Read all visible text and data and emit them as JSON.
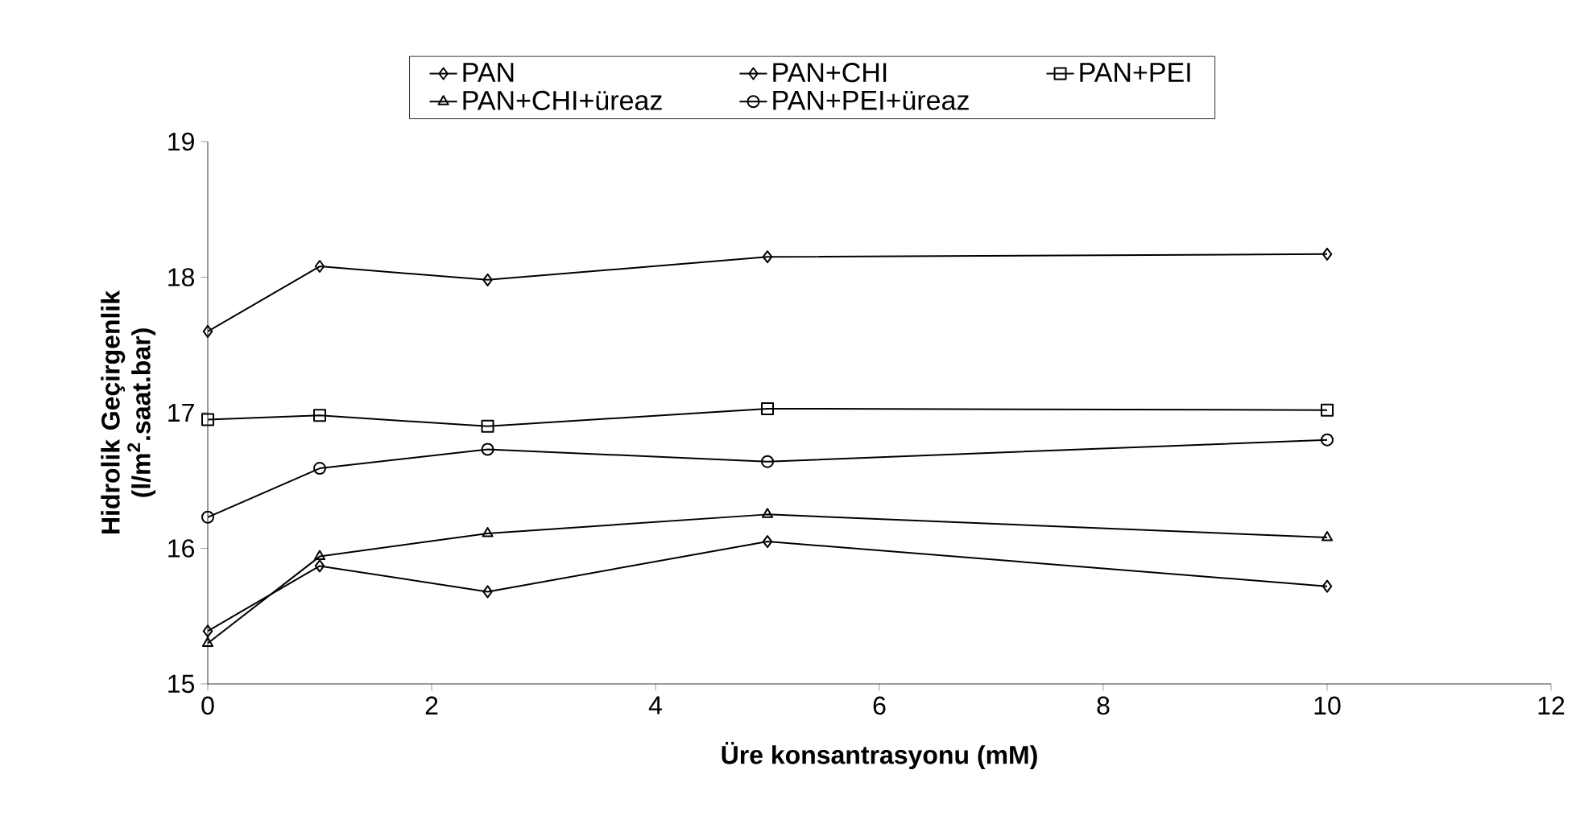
{
  "chart_data": {
    "type": "line",
    "xlabel": "Üre konsantrasyonu (mM)",
    "ylabel": "Hidrolik Geçirgenlik (l/m$^{2}$.saat.bar)",
    "x": [
      0,
      1,
      2.5,
      5,
      10
    ],
    "series": [
      {
        "name": "PAN",
        "color": "#000000",
        "marker": "diamond",
        "values": [
          17.6,
          18.08,
          17.98,
          18.15,
          18.17
        ]
      },
      {
        "name": "PAN+CHI",
        "color": "#000000",
        "marker": "diamond",
        "values": [
          15.39,
          15.87,
          15.68,
          16.05,
          15.72
        ]
      },
      {
        "name": "PAN+PEI",
        "color": "#000000",
        "marker": "square",
        "values": [
          16.95,
          16.98,
          16.9,
          17.03,
          17.02
        ]
      },
      {
        "name": "PAN+CHI+üreaz",
        "color": "#000000",
        "marker": "triangle",
        "values": [
          15.3,
          15.94,
          16.11,
          16.25,
          16.08
        ]
      },
      {
        "name": "PAN+PEI+üreaz",
        "color": "#000000",
        "marker": "circle",
        "values": [
          16.23,
          16.59,
          16.73,
          16.64,
          16.8
        ]
      }
    ],
    "xlim": [
      0,
      12
    ],
    "xticks": [
      0,
      2,
      4,
      6,
      8,
      10,
      12
    ],
    "ylim": [
      15,
      19
    ],
    "yticks": [
      15,
      16,
      17,
      18,
      19
    ],
    "legend": "top",
    "grid": false,
    "line_style": "solid"
  }
}
